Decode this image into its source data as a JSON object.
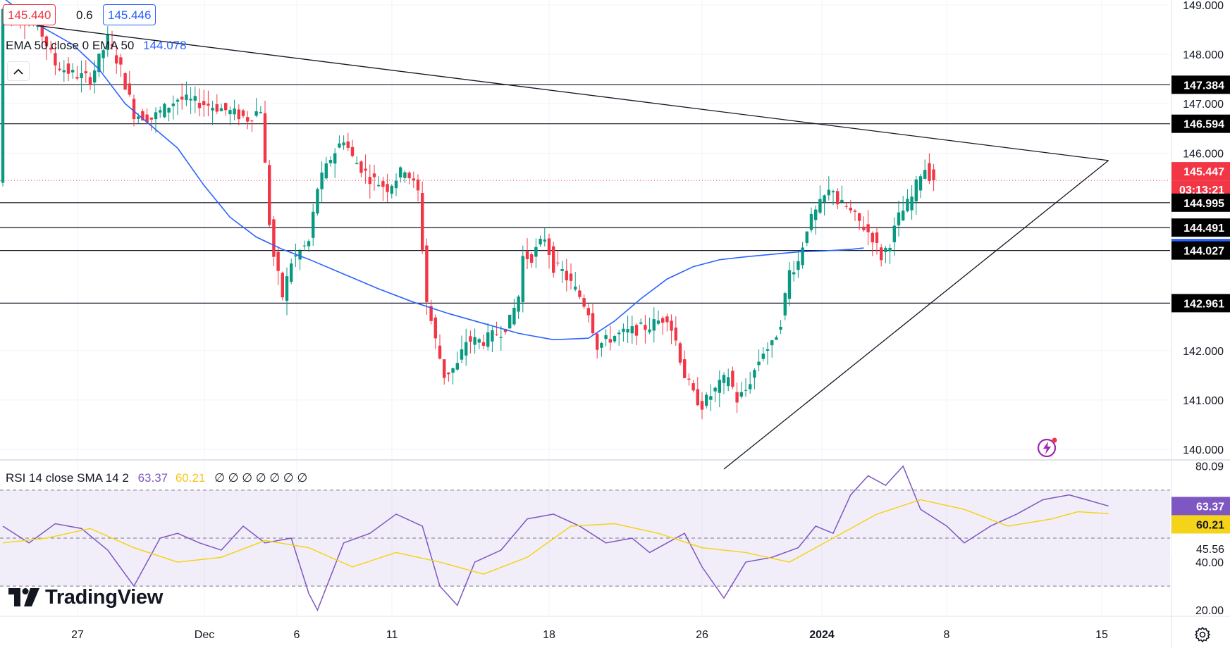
{
  "ohlc_legend": {
    "price_a": "145.440",
    "change": "0.6",
    "price_b": "145.446"
  },
  "ema_legend": {
    "label": "EMA 50 close 0 EMA 50",
    "value": "144.078"
  },
  "rsi_legend": {
    "label": "RSI 14 close SMA 14 2",
    "rsi_value": "63.37",
    "sma_value": "60.21",
    "extras": "∅ ∅ ∅ ∅ ∅ ∅ ∅"
  },
  "brand": {
    "name": "TradingView"
  },
  "colors": {
    "up": "#089981",
    "down": "#f23645",
    "ema": "#2962ff",
    "rsi": "#7e57c2",
    "rsi_sma": "#f5d318",
    "label_bg": "#000000",
    "grid": "#f0f3fa"
  },
  "chart_data": [
    {
      "type": "candlestick",
      "title": "",
      "y_axis": {
        "min": 139.8,
        "max": 149.1,
        "ticks": [
          140.0,
          141.0,
          142.0,
          146.0,
          147.0,
          148.0,
          149.0
        ]
      },
      "x_axis": {
        "ticks": [
          "27",
          "Dec",
          "6",
          "11",
          "18",
          "26",
          "2024",
          "8",
          "15"
        ]
      },
      "series": [
        {
          "name": "EMA 50",
          "role": "ema",
          "x": [
            0,
            8,
            16,
            22,
            28,
            34,
            40,
            46,
            52,
            58,
            64,
            70,
            78,
            86,
            94,
            102,
            110,
            118,
            126,
            134,
            140,
            146,
            152,
            158,
            164,
            170,
            176,
            182,
            188,
            194,
            197
          ],
          "y": [
            149.15,
            148.6,
            148.2,
            147.7,
            147.0,
            146.55,
            146.1,
            145.35,
            144.7,
            144.3,
            144.05,
            143.85,
            143.55,
            143.25,
            142.98,
            142.75,
            142.55,
            142.35,
            142.22,
            142.25,
            142.6,
            143.05,
            143.45,
            143.7,
            143.84,
            143.9,
            143.95,
            144.0,
            144.02,
            144.05,
            144.078
          ]
        },
        {
          "name": "Trend line upper",
          "role": "trendline",
          "x": [
            8,
            253
          ],
          "y": [
            148.58,
            145.85
          ]
        },
        {
          "name": "Trend line lower",
          "role": "trendline",
          "x": [
            165,
            253
          ],
          "y": [
            139.6,
            145.85
          ]
        }
      ],
      "horizontal_levels": [
        147.384,
        146.594,
        144.995,
        144.491,
        144.027,
        142.961
      ],
      "price_labels": [
        {
          "text": "147.384",
          "value": 147.384,
          "style": "black"
        },
        {
          "text": "146.594",
          "value": 146.594,
          "style": "black"
        },
        {
          "text": "145.447",
          "value": 145.447,
          "style": "red"
        },
        {
          "text": "03:13:21",
          "value": 145.447,
          "style": "red-sub"
        },
        {
          "text": "144.995",
          "value": 144.995,
          "style": "black"
        },
        {
          "text": "144.491",
          "value": 144.491,
          "style": "black"
        },
        {
          "text": "144.078",
          "value": 144.078,
          "style": "blue"
        },
        {
          "text": "144.027",
          "value": 144.027,
          "style": "black"
        },
        {
          "text": "142.961",
          "value": 142.961,
          "style": "black"
        }
      ],
      "last_price": 145.447,
      "countdown": "03:13:21"
    },
    {
      "type": "line",
      "title": "RSI 14 close SMA 14 2",
      "ylim": [
        18,
        82
      ],
      "levels": {
        "upper": 70,
        "middle": 50,
        "lower": 30
      },
      "y_axis": {
        "ticks": [
          20.0,
          40.0,
          80.09
        ]
      },
      "price_labels": [
        {
          "text": "63.37",
          "value": 63.37,
          "style": "purple"
        },
        {
          "text": "60.21",
          "value": 60.21,
          "style": "yellow"
        },
        {
          "text": "45.56",
          "value": 45.56,
          "style": "plain"
        }
      ],
      "series": [
        {
          "name": "RSI",
          "role": "rsi",
          "x": [
            0,
            6,
            12,
            18,
            24,
            30,
            36,
            40,
            45,
            50,
            55,
            60,
            66,
            70,
            72,
            78,
            84,
            90,
            96,
            100,
            104,
            108,
            114,
            120,
            126,
            132,
            138,
            144,
            148,
            152,
            156,
            160,
            165,
            170,
            176,
            182,
            186,
            190,
            194,
            198,
            202,
            206,
            210,
            216,
            220,
            226,
            232,
            238,
            244,
            248,
            253
          ],
          "y": [
            55,
            48,
            56,
            54,
            45,
            30,
            50,
            52,
            48,
            45,
            55,
            48,
            50,
            27,
            20,
            48,
            52,
            60,
            55,
            30,
            22,
            40,
            45,
            58,
            60,
            55,
            48,
            50,
            44,
            48,
            52,
            38,
            25,
            40,
            42,
            46,
            55,
            52,
            68,
            76,
            72,
            80,
            62,
            55,
            48,
            55,
            60,
            66,
            68,
            66,
            63.37
          ]
        },
        {
          "name": "RSI SMA",
          "role": "rsi_sma",
          "x": [
            0,
            10,
            20,
            30,
            40,
            50,
            60,
            70,
            80,
            90,
            100,
            110,
            120,
            130,
            140,
            150,
            160,
            170,
            180,
            190,
            200,
            210,
            220,
            230,
            240,
            246,
            253
          ],
          "y": [
            48,
            50,
            54,
            46,
            40,
            42,
            49,
            46,
            38,
            44,
            40,
            35,
            42,
            55,
            56,
            52,
            46,
            44,
            40,
            50,
            60,
            66,
            62,
            55,
            58,
            61,
            60.21
          ]
        }
      ]
    }
  ]
}
